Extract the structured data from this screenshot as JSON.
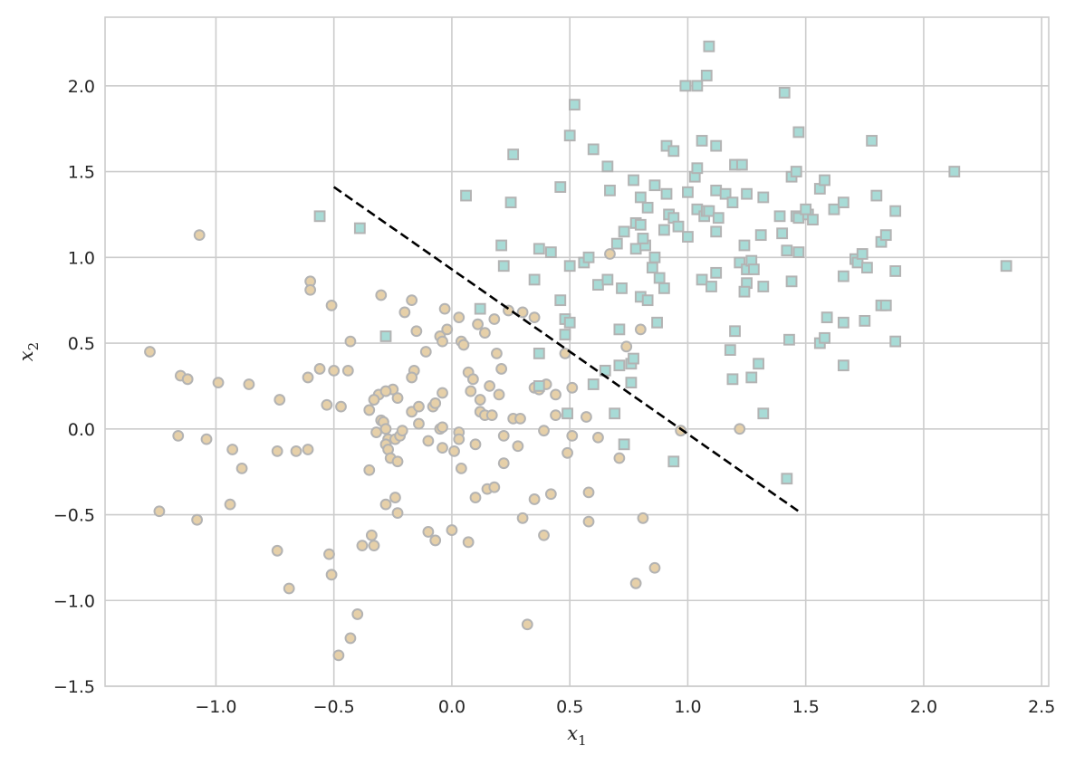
{
  "chart_data": {
    "type": "scatter",
    "title": "",
    "xlabel": {
      "base": "x",
      "sub": "1"
    },
    "ylabel": {
      "base": "x",
      "sub": "2"
    },
    "xlim": [
      -1.47,
      2.53
    ],
    "ylim": [
      -1.5,
      2.4
    ],
    "xticks": [
      -1.0,
      -0.5,
      0.0,
      0.5,
      1.0,
      1.5,
      2.0,
      2.5
    ],
    "xtick_labels": [
      "−1.0",
      "−0.5",
      "0.0",
      "0.5",
      "1.0",
      "1.5",
      "2.0",
      "2.5"
    ],
    "yticks": [
      -1.5,
      -1.0,
      -0.5,
      0.0,
      0.5,
      1.0,
      1.5,
      2.0
    ],
    "ytick_labels": [
      "−1.5",
      "−1.0",
      "−0.5",
      "0.0",
      "0.5",
      "1.0",
      "1.5",
      "2.0"
    ],
    "grid": true,
    "style": {
      "background": "#ffffff",
      "grid_color": "#cccccc",
      "spine_color": "#cccccc",
      "line_color": "#000000"
    },
    "series": [
      {
        "marker": "circle",
        "fill": "#e6d0a9",
        "edge": "#b3b3b3",
        "points": [
          [
            -1.28,
            0.45
          ],
          [
            -1.07,
            1.13
          ],
          [
            -1.15,
            0.31
          ],
          [
            -1.12,
            0.29
          ],
          [
            -0.99,
            0.27
          ],
          [
            -0.86,
            0.26
          ],
          [
            -1.16,
            -0.04
          ],
          [
            -1.04,
            -0.06
          ],
          [
            -0.93,
            -0.12
          ],
          [
            -0.89,
            -0.23
          ],
          [
            -1.24,
            -0.48
          ],
          [
            -1.08,
            -0.53
          ],
          [
            -0.94,
            -0.44
          ],
          [
            -0.73,
            0.17
          ],
          [
            -0.74,
            -0.13
          ],
          [
            -0.66,
            -0.13
          ],
          [
            -0.61,
            -0.12
          ],
          [
            -0.74,
            -0.71
          ],
          [
            -0.69,
            -0.93
          ],
          [
            -0.6,
            0.86
          ],
          [
            -0.6,
            0.81
          ],
          [
            -0.51,
            0.72
          ],
          [
            -0.61,
            0.3
          ],
          [
            -0.56,
            0.35
          ],
          [
            -0.5,
            0.34
          ],
          [
            -0.44,
            0.34
          ],
          [
            -0.43,
            0.51
          ],
          [
            -0.53,
            0.14
          ],
          [
            -0.47,
            0.13
          ],
          [
            -0.52,
            -0.73
          ],
          [
            -0.51,
            -0.85
          ],
          [
            -0.38,
            -0.68
          ],
          [
            -0.34,
            -0.62
          ],
          [
            -0.33,
            -0.68
          ],
          [
            -0.4,
            -1.08
          ],
          [
            -0.43,
            -1.22
          ],
          [
            -0.48,
            -1.32
          ],
          [
            -0.3,
            0.78
          ],
          [
            -0.31,
            0.2
          ],
          [
            -0.33,
            0.17
          ],
          [
            -0.35,
            0.11
          ],
          [
            -0.3,
            0.05
          ],
          [
            -0.29,
            0.04
          ],
          [
            -0.32,
            -0.02
          ],
          [
            -0.28,
            0.0
          ],
          [
            -0.27,
            -0.06
          ],
          [
            -0.28,
            -0.09
          ],
          [
            -0.27,
            -0.12
          ],
          [
            -0.26,
            -0.17
          ],
          [
            -0.35,
            -0.24
          ],
          [
            -0.28,
            -0.44
          ],
          [
            -0.24,
            -0.4
          ],
          [
            -0.23,
            -0.49
          ],
          [
            -0.23,
            -0.19
          ],
          [
            -0.24,
            -0.06
          ],
          [
            -0.22,
            -0.04
          ],
          [
            -0.21,
            -0.01
          ],
          [
            -0.25,
            0.23
          ],
          [
            -0.23,
            0.18
          ],
          [
            -0.28,
            0.22
          ],
          [
            -0.2,
            0.68
          ],
          [
            -0.17,
            0.75
          ],
          [
            -0.15,
            0.57
          ],
          [
            -0.16,
            0.34
          ],
          [
            -0.17,
            0.3
          ],
          [
            -0.17,
            0.1
          ],
          [
            -0.14,
            0.13
          ],
          [
            -0.14,
            0.03
          ],
          [
            -0.11,
            0.45
          ],
          [
            -0.08,
            0.13
          ],
          [
            -0.07,
            0.15
          ],
          [
            -0.05,
            0.54
          ],
          [
            -0.04,
            0.51
          ],
          [
            -0.02,
            0.58
          ],
          [
            -0.03,
            0.7
          ],
          [
            -0.04,
            0.21
          ],
          [
            -0.05,
            0.0
          ],
          [
            -0.04,
            0.01
          ],
          [
            -0.1,
            -0.07
          ],
          [
            -0.04,
            -0.11
          ],
          [
            -0.1,
            -0.6
          ],
          [
            -0.07,
            -0.65
          ],
          [
            0.0,
            -0.59
          ],
          [
            0.01,
            -0.13
          ],
          [
            0.03,
            0.65
          ],
          [
            0.04,
            0.51
          ],
          [
            0.05,
            0.49
          ],
          [
            0.07,
            0.33
          ],
          [
            0.09,
            0.29
          ],
          [
            0.08,
            0.22
          ],
          [
            0.03,
            -0.02
          ],
          [
            0.03,
            -0.06
          ],
          [
            0.04,
            -0.23
          ],
          [
            0.07,
            -0.66
          ],
          [
            0.11,
            0.61
          ],
          [
            0.14,
            0.56
          ],
          [
            0.18,
            0.64
          ],
          [
            0.12,
            0.17
          ],
          [
            0.12,
            0.1
          ],
          [
            0.14,
            0.08
          ],
          [
            0.16,
            0.25
          ],
          [
            0.17,
            0.08
          ],
          [
            0.2,
            0.2
          ],
          [
            0.19,
            0.44
          ],
          [
            0.21,
            0.35
          ],
          [
            0.1,
            -0.09
          ],
          [
            0.1,
            -0.4
          ],
          [
            0.15,
            -0.35
          ],
          [
            0.18,
            -0.34
          ],
          [
            0.22,
            -0.2
          ],
          [
            0.22,
            -0.04
          ],
          [
            0.24,
            0.69
          ],
          [
            0.3,
            0.68
          ],
          [
            0.35,
            0.65
          ],
          [
            0.26,
            0.06
          ],
          [
            0.29,
            0.06
          ],
          [
            0.35,
            0.24
          ],
          [
            0.37,
            0.23
          ],
          [
            0.4,
            0.26
          ],
          [
            0.28,
            -0.1
          ],
          [
            0.3,
            -0.52
          ],
          [
            0.32,
            -1.14
          ],
          [
            0.35,
            -0.41
          ],
          [
            0.39,
            -0.62
          ],
          [
            0.42,
            -0.38
          ],
          [
            0.44,
            0.2
          ],
          [
            0.44,
            0.08
          ],
          [
            0.39,
            -0.01
          ],
          [
            0.48,
            0.44
          ],
          [
            0.51,
            0.24
          ],
          [
            0.51,
            -0.04
          ],
          [
            0.49,
            -0.14
          ],
          [
            0.57,
            0.07
          ],
          [
            0.58,
            -0.37
          ],
          [
            0.58,
            -0.54
          ],
          [
            0.62,
            -0.05
          ],
          [
            0.67,
            1.02
          ],
          [
            0.71,
            -0.17
          ],
          [
            0.74,
            0.48
          ],
          [
            0.78,
            -0.9
          ],
          [
            0.8,
            0.58
          ],
          [
            0.81,
            -0.52
          ],
          [
            0.86,
            -0.81
          ],
          [
            0.97,
            -0.01
          ],
          [
            1.22,
            0.0
          ]
        ]
      },
      {
        "marker": "square",
        "fill": "#a8dbd6",
        "edge": "#b3b3b3",
        "points": [
          [
            -0.56,
            1.24
          ],
          [
            -0.39,
            1.17
          ],
          [
            -0.28,
            0.54
          ],
          [
            0.06,
            1.36
          ],
          [
            0.21,
            1.07
          ],
          [
            0.22,
            0.95
          ],
          [
            0.12,
            0.7
          ],
          [
            0.26,
            1.6
          ],
          [
            0.25,
            1.32
          ],
          [
            0.37,
            1.05
          ],
          [
            0.42,
            1.03
          ],
          [
            0.35,
            0.87
          ],
          [
            0.37,
            0.44
          ],
          [
            0.37,
            0.25
          ],
          [
            0.46,
            1.41
          ],
          [
            0.46,
            0.75
          ],
          [
            0.48,
            0.64
          ],
          [
            0.5,
            0.62
          ],
          [
            0.48,
            0.55
          ],
          [
            0.5,
            0.95
          ],
          [
            0.5,
            1.71
          ],
          [
            0.52,
            1.89
          ],
          [
            0.49,
            0.09
          ],
          [
            0.56,
            0.97
          ],
          [
            0.58,
            1.0
          ],
          [
            0.6,
            1.63
          ],
          [
            0.62,
            0.84
          ],
          [
            0.66,
            0.87
          ],
          [
            0.65,
            0.34
          ],
          [
            0.6,
            0.26
          ],
          [
            0.67,
            1.39
          ],
          [
            0.66,
            1.53
          ],
          [
            0.7,
            1.08
          ],
          [
            0.72,
            0.82
          ],
          [
            0.71,
            0.58
          ],
          [
            0.71,
            0.37
          ],
          [
            0.76,
            0.38
          ],
          [
            0.77,
            0.41
          ],
          [
            0.76,
            0.27
          ],
          [
            0.69,
            0.09
          ],
          [
            0.73,
            -0.09
          ],
          [
            0.73,
            1.15
          ],
          [
            0.77,
            1.45
          ],
          [
            0.78,
            1.2
          ],
          [
            0.8,
            1.35
          ],
          [
            0.8,
            1.19
          ],
          [
            0.78,
            1.05
          ],
          [
            0.82,
            1.07
          ],
          [
            0.81,
            1.11
          ],
          [
            0.83,
            1.29
          ],
          [
            0.86,
            1.42
          ],
          [
            0.86,
            1.0
          ],
          [
            0.85,
            0.94
          ],
          [
            0.88,
            0.88
          ],
          [
            0.9,
            0.82
          ],
          [
            0.87,
            0.62
          ],
          [
            0.8,
            0.77
          ],
          [
            0.83,
            0.75
          ],
          [
            0.9,
            1.16
          ],
          [
            0.91,
            1.37
          ],
          [
            0.92,
            1.25
          ],
          [
            0.94,
            1.23
          ],
          [
            0.96,
            1.18
          ],
          [
            0.91,
            1.65
          ],
          [
            0.94,
            1.62
          ],
          [
            0.99,
            2.0
          ],
          [
            1.0,
            1.38
          ],
          [
            1.0,
            1.12
          ],
          [
            1.03,
            1.47
          ],
          [
            1.04,
            1.52
          ],
          [
            1.04,
            1.28
          ],
          [
            1.06,
            1.68
          ],
          [
            1.07,
            1.24
          ],
          [
            1.08,
            1.27
          ],
          [
            1.09,
            1.27
          ],
          [
            1.06,
            0.87
          ],
          [
            1.1,
            0.83
          ],
          [
            1.12,
            0.91
          ],
          [
            1.04,
            2.0
          ],
          [
            1.08,
            2.06
          ],
          [
            1.09,
            2.23
          ],
          [
            1.12,
            1.65
          ],
          [
            1.12,
            1.39
          ],
          [
            1.12,
            1.15
          ],
          [
            1.13,
            1.23
          ],
          [
            1.16,
            1.37
          ],
          [
            1.19,
            1.32
          ],
          [
            1.2,
            1.54
          ],
          [
            1.23,
            1.54
          ],
          [
            1.25,
            1.37
          ],
          [
            1.22,
            0.97
          ],
          [
            1.24,
            1.07
          ],
          [
            1.25,
            0.93
          ],
          [
            1.25,
            0.85
          ],
          [
            1.27,
            0.98
          ],
          [
            1.28,
            0.93
          ],
          [
            1.24,
            0.8
          ],
          [
            1.2,
            0.57
          ],
          [
            1.18,
            0.46
          ],
          [
            1.19,
            0.29
          ],
          [
            1.27,
            0.3
          ],
          [
            1.3,
            0.38
          ],
          [
            1.32,
            0.09
          ],
          [
            1.31,
            1.13
          ],
          [
            1.32,
            1.35
          ],
          [
            1.32,
            0.83
          ],
          [
            1.39,
            1.24
          ],
          [
            1.4,
            1.14
          ],
          [
            1.41,
            1.96
          ],
          [
            1.42,
            1.04
          ],
          [
            1.43,
            0.52
          ],
          [
            1.44,
            0.86
          ],
          [
            1.44,
            1.47
          ],
          [
            1.46,
            1.5
          ],
          [
            1.46,
            1.24
          ],
          [
            1.47,
            1.23
          ],
          [
            1.47,
            1.73
          ],
          [
            1.47,
            1.03
          ],
          [
            1.51,
            1.25
          ],
          [
            1.5,
            1.28
          ],
          [
            1.53,
            1.22
          ],
          [
            1.56,
            1.4
          ],
          [
            1.58,
            1.45
          ],
          [
            1.56,
            0.5
          ],
          [
            1.58,
            0.53
          ],
          [
            1.59,
            0.65
          ],
          [
            1.62,
            1.28
          ],
          [
            1.66,
            1.32
          ],
          [
            1.66,
            0.89
          ],
          [
            1.66,
            0.62
          ],
          [
            1.66,
            0.37
          ],
          [
            1.71,
            0.99
          ],
          [
            1.72,
            0.97
          ],
          [
            1.74,
            1.02
          ],
          [
            1.75,
            0.63
          ],
          [
            1.76,
            0.94
          ],
          [
            1.78,
            1.68
          ],
          [
            1.8,
            1.36
          ],
          [
            1.82,
            1.09
          ],
          [
            1.82,
            0.72
          ],
          [
            1.84,
            0.72
          ],
          [
            1.84,
            1.13
          ],
          [
            1.88,
            1.27
          ],
          [
            1.88,
            0.92
          ],
          [
            1.88,
            0.51
          ],
          [
            2.13,
            1.5
          ],
          [
            2.35,
            0.95
          ],
          [
            0.94,
            -0.19
          ],
          [
            1.42,
            -0.29
          ]
        ]
      }
    ],
    "decision_line": {
      "x": [
        -0.5,
        1.48
      ],
      "y": [
        1.41,
        -0.49
      ],
      "style": "dashed"
    }
  }
}
